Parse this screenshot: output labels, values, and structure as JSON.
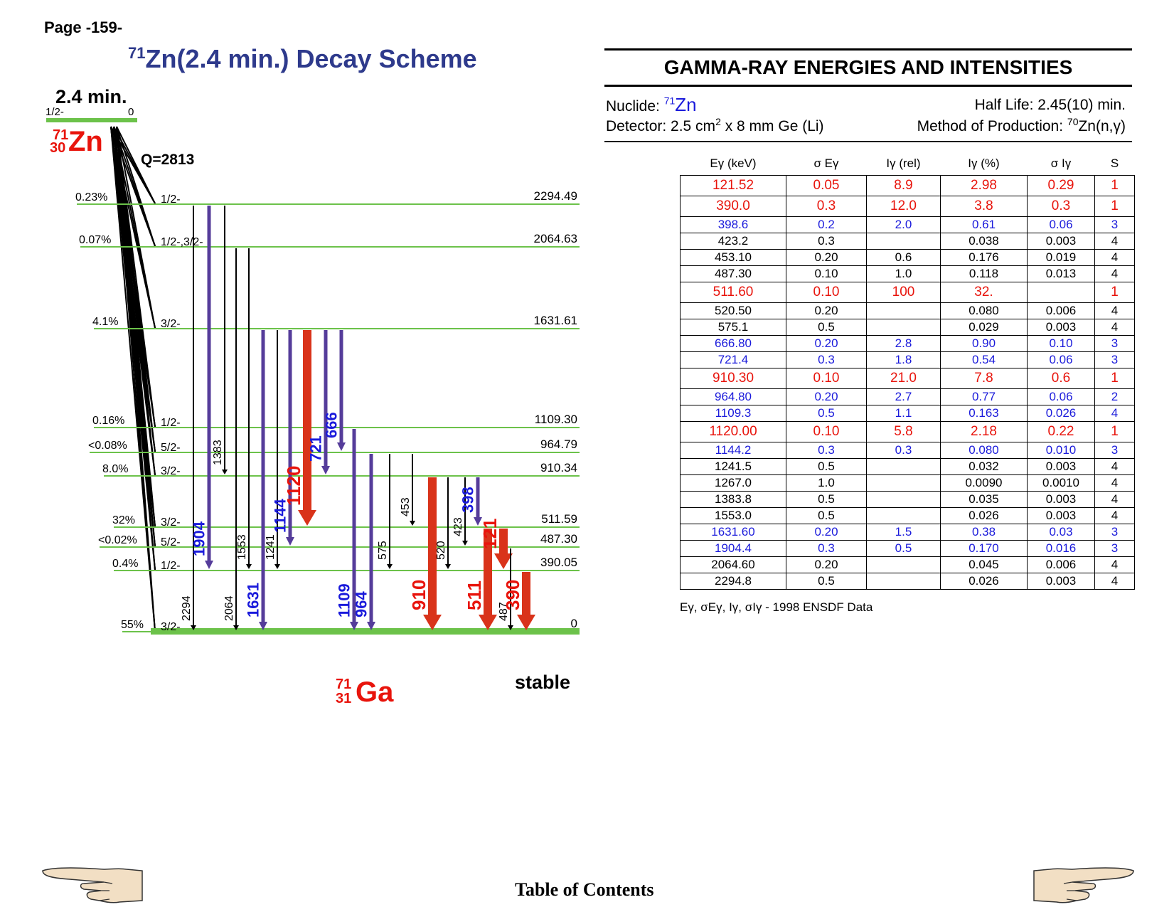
{
  "page_label": "Page -159-",
  "scheme": {
    "title_mass": "71",
    "title_text": "Zn(2.4 min.) Decay Scheme",
    "parent": {
      "halflife": "2.4 min.",
      "spin": "1/2-",
      "energy": "0",
      "mass": "71",
      "z": "30",
      "symbol": "Zn",
      "q_value": "Q=2813"
    },
    "daughter": {
      "mass": "71",
      "z": "31",
      "symbol": "Ga",
      "label": "stable"
    },
    "levels": [
      {
        "energy": 2294.49,
        "energy_label": "2294.49",
        "spin": "1/2-",
        "branch": "0.23%"
      },
      {
        "energy": 2064.63,
        "energy_label": "2064.63",
        "spin": "1/2-,3/2-",
        "branch": "0.07%"
      },
      {
        "energy": 1631.61,
        "energy_label": "1631.61",
        "spin": "3/2-",
        "branch": "4.1%"
      },
      {
        "energy": 1109.3,
        "energy_label": "1109.30",
        "spin": "1/2-",
        "branch": "0.16%"
      },
      {
        "energy": 964.79,
        "energy_label": "964.79",
        "spin": "5/2-",
        "branch": "<0.08%"
      },
      {
        "energy": 910.34,
        "energy_label": "910.34",
        "spin": "3/2-",
        "branch": "8.0%"
      },
      {
        "energy": 511.59,
        "energy_label": "511.59",
        "spin": "3/2-",
        "branch": "32%"
      },
      {
        "energy": 487.3,
        "energy_label": "487.30",
        "spin": "5/2-",
        "branch": "<0.02%"
      },
      {
        "energy": 390.05,
        "energy_label": "390.05",
        "spin": "1/2-",
        "branch": "0.4%"
      },
      {
        "energy": 0,
        "energy_label": "0",
        "spin": "3/2-",
        "branch": "55%"
      }
    ],
    "transitions": [
      {
        "label": "2294",
        "from": 0,
        "to": 9,
        "cls": "black"
      },
      {
        "label": "1904",
        "from": 0,
        "to": 8,
        "cls": "blue"
      },
      {
        "label": "1383",
        "from": 0,
        "to": 5,
        "cls": "black"
      },
      {
        "label": "2064",
        "from": 1,
        "to": 9,
        "cls": "black"
      },
      {
        "label": "1553",
        "from": 1,
        "to": 8,
        "cls": "black"
      },
      {
        "label": "1631",
        "from": 2,
        "to": 9,
        "cls": "blue"
      },
      {
        "label": "1241",
        "from": 2,
        "to": 8,
        "cls": "black"
      },
      {
        "label": "1144",
        "from": 2,
        "to": 7,
        "cls": "blue"
      },
      {
        "label": "1120",
        "from": 2,
        "to": 6,
        "cls": "red"
      },
      {
        "label": "721",
        "from": 2,
        "to": 5,
        "cls": "blue"
      },
      {
        "label": "666",
        "from": 2,
        "to": 4,
        "cls": "blue"
      },
      {
        "label": "1109",
        "from": 3,
        "to": 9,
        "cls": "blue"
      },
      {
        "label": "964",
        "from": 4,
        "to": 9,
        "cls": "blue"
      },
      {
        "label": "575",
        "from": 4,
        "to": 8,
        "cls": "black"
      },
      {
        "label": "453",
        "from": 4,
        "to": 6,
        "cls": "black"
      },
      {
        "label": "910",
        "from": 5,
        "to": 9,
        "cls": "red"
      },
      {
        "label": "520",
        "from": 5,
        "to": 8,
        "cls": "black"
      },
      {
        "label": "423",
        "from": 5,
        "to": 7,
        "cls": "black"
      },
      {
        "label": "398",
        "from": 5,
        "to": 6,
        "cls": "blue"
      },
      {
        "label": "511",
        "from": 6,
        "to": 9,
        "cls": "red"
      },
      {
        "label": "121",
        "from": 6,
        "to": 8,
        "cls": "red"
      },
      {
        "label": "487",
        "from": 7,
        "to": 9,
        "cls": "black"
      },
      {
        "label": "390",
        "from": 8,
        "to": 9,
        "cls": "red"
      }
    ],
    "colors": {
      "level": "#6cc24a",
      "blue": "#553c9a",
      "blue_text": "#1a1adb",
      "red": "#d9331a",
      "title": "#2e3a8c"
    }
  },
  "panel": {
    "title": "GAMMA-RAY ENERGIES AND INTENSITIES",
    "nuclide_label": "Nuclide: ",
    "nuclide_mass": "71",
    "nuclide_symbol": "Zn",
    "half_life": "Half Life: 2.45(10) min.",
    "detector_pre": "Detector: 2.5 cm",
    "detector_sup": "2",
    "detector_post": " x 8 mm Ge (Li)",
    "production_pre": "Method of Production: ",
    "production_sup": "70",
    "production_post": "Zn(n,γ)"
  },
  "table": {
    "headers": [
      "Eγ (keV)",
      "σ Eγ",
      "Iγ (rel)",
      "Iγ (%)",
      "σ Iγ",
      "S"
    ],
    "rows": [
      {
        "c": "red",
        "v": [
          "121.52",
          "0.05",
          "8.9",
          "2.98",
          "0.29",
          "1"
        ]
      },
      {
        "c": "red",
        "v": [
          "390.0",
          "0.3",
          "12.0",
          "3.8",
          "0.3",
          "1"
        ]
      },
      {
        "c": "blue",
        "v": [
          "398.6",
          "0.2",
          "2.0",
          "0.61",
          "0.06",
          "3"
        ]
      },
      {
        "c": "black",
        "v": [
          "423.2",
          "0.3",
          "",
          "0.038",
          "0.003",
          "4"
        ]
      },
      {
        "c": "black",
        "v": [
          "453.10",
          "0.20",
          "0.6",
          "0.176",
          "0.019",
          "4"
        ]
      },
      {
        "c": "black",
        "v": [
          "487.30",
          "0.10",
          "1.0",
          "0.118",
          "0.013",
          "4"
        ]
      },
      {
        "c": "red",
        "v": [
          "511.60",
          "0.10",
          "100",
          "32.",
          "",
          "1"
        ]
      },
      {
        "c": "black",
        "v": [
          "520.50",
          "0.20",
          "",
          "0.080",
          "0.006",
          "4"
        ]
      },
      {
        "c": "black",
        "v": [
          "575.1",
          "0.5",
          "",
          "0.029",
          "0.003",
          "4"
        ]
      },
      {
        "c": "blue",
        "v": [
          "666.80",
          "0.20",
          "2.8",
          "0.90",
          "0.10",
          "3"
        ]
      },
      {
        "c": "blue",
        "v": [
          "721.4",
          "0.3",
          "1.8",
          "0.54",
          "0.06",
          "3"
        ]
      },
      {
        "c": "red",
        "v": [
          "910.30",
          "0.10",
          "21.0",
          "7.8",
          "0.6",
          "1"
        ]
      },
      {
        "c": "blue",
        "v": [
          "964.80",
          "0.20",
          "2.7",
          "0.77",
          "0.06",
          "2"
        ]
      },
      {
        "c": "blue",
        "v": [
          "1109.3",
          "0.5",
          "1.1",
          "0.163",
          "0.026",
          "4"
        ]
      },
      {
        "c": "red",
        "v": [
          "1120.00",
          "0.10",
          "5.8",
          "2.18",
          "0.22",
          "1"
        ]
      },
      {
        "c": "blue",
        "v": [
          "1144.2",
          "0.3",
          "0.3",
          "0.080",
          "0.010",
          "3"
        ]
      },
      {
        "c": "black",
        "v": [
          "1241.5",
          "0.5",
          "",
          "0.032",
          "0.003",
          "4"
        ]
      },
      {
        "c": "black",
        "v": [
          "1267.0",
          "1.0",
          "",
          "0.0090",
          "0.0010",
          "4"
        ]
      },
      {
        "c": "black",
        "v": [
          "1383.8",
          "0.5",
          "",
          "0.035",
          "0.003",
          "4"
        ]
      },
      {
        "c": "black",
        "v": [
          "1553.0",
          "0.5",
          "",
          "0.026",
          "0.003",
          "4"
        ]
      },
      {
        "c": "blue",
        "v": [
          "1631.60",
          "0.20",
          "1.5",
          "0.38",
          "0.03",
          "3"
        ]
      },
      {
        "c": "blue",
        "v": [
          "1904.4",
          "0.3",
          "0.5",
          "0.170",
          "0.016",
          "3"
        ]
      },
      {
        "c": "black",
        "v": [
          "2064.60",
          "0.20",
          "",
          "0.045",
          "0.006",
          "4"
        ]
      },
      {
        "c": "black",
        "v": [
          "2294.8",
          "0.5",
          "",
          "0.026",
          "0.003",
          "4"
        ]
      }
    ],
    "row_colors": {
      "red": "#e8140c",
      "blue": "#1a1adb",
      "black": "#000000"
    },
    "footnote": "Eγ, σEγ, Iγ, σIγ - 1998 ENSDF Data"
  },
  "nav": {
    "toc_label": "Table of Contents",
    "prev_icon": "pointing-hand-left-icon",
    "next_icon": "pointing-hand-right-icon"
  }
}
